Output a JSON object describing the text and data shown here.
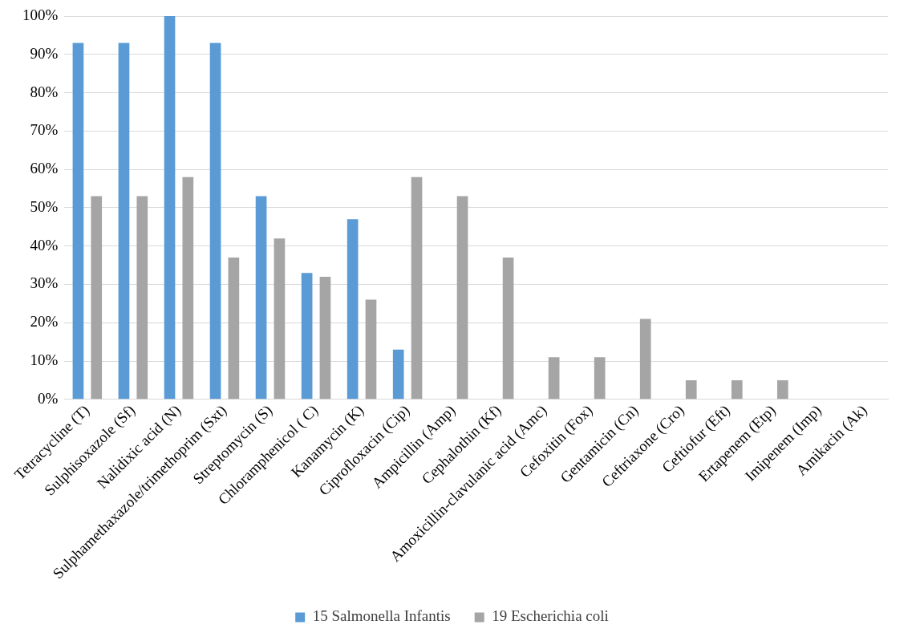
{
  "chart_data": {
    "type": "bar",
    "categories": [
      "Tetracycline (T)",
      "Sulphisoxazole (Sf)",
      "Nalidixic acid (N)",
      "Sulphamethaxazole/trimethoprim (Sxt)",
      "Streptomycin (S)",
      "Chloramphenicol ( C)",
      "Kanamycin (K)",
      "Ciprofloxacin (Cip)",
      "Ampicillin (Amp)",
      "Cephalothin (Kf)",
      "Amoxicillin-clavulanic acid (Amc)",
      "Cefoxitin (Fox)",
      "Gentamicin (Cn)",
      "Ceftriaxone (Cro)",
      "Ceftiofur (Eft)",
      "Ertapenem (Etp)",
      "Imipenem (Imp)",
      "Amikacin (Ak)"
    ],
    "series": [
      {
        "name": "15 Salmonella Infantis",
        "color": "#5b9bd5",
        "values": [
          93,
          93,
          100,
          93,
          53,
          33,
          47,
          13,
          0,
          0,
          0,
          0,
          0,
          0,
          0,
          0,
          0,
          0
        ]
      },
      {
        "name": "19 Escherichia coli",
        "color": "#a5a5a5",
        "values": [
          53,
          53,
          58,
          37,
          42,
          32,
          26,
          58,
          53,
          37,
          11,
          11,
          21,
          5,
          5,
          5,
          0,
          0
        ]
      }
    ],
    "ylim": [
      0,
      100
    ],
    "yticks": [
      {
        "value": 0,
        "label": "0%"
      },
      {
        "value": 10,
        "label": "10%"
      },
      {
        "value": 20,
        "label": "20%"
      },
      {
        "value": 30,
        "label": "30%"
      },
      {
        "value": 40,
        "label": "40%"
      },
      {
        "value": 50,
        "label": "50%"
      },
      {
        "value": 60,
        "label": "60%"
      },
      {
        "value": 70,
        "label": "70%"
      },
      {
        "value": 80,
        "label": "80%"
      },
      {
        "value": 90,
        "label": "90%"
      },
      {
        "value": 100,
        "label": "100%"
      }
    ],
    "grid": "y",
    "legend": "bottom"
  }
}
